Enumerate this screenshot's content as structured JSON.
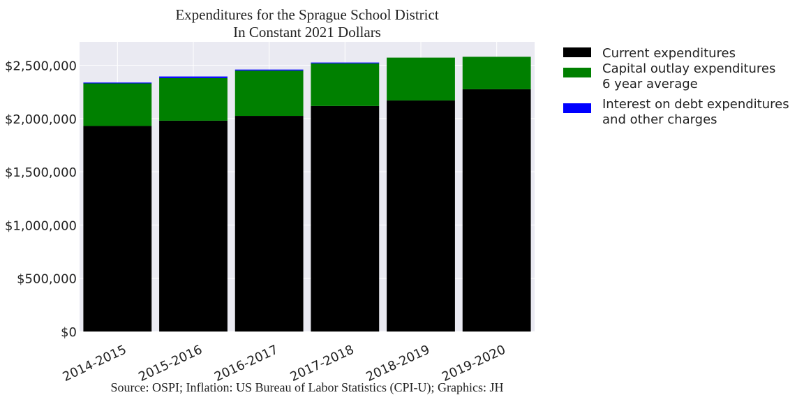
{
  "chart_data": {
    "type": "bar",
    "stacked": true,
    "title": "Expenditures for the Sprague School District",
    "subtitle": "In Constant 2021 Dollars",
    "footer": "Source: OSPI; Inflation: US Bureau of Labor Statistics (CPI-U); Graphics: JH",
    "categories": [
      "2014-2015",
      "2015-2016",
      "2016-2017",
      "2017-2018",
      "2018-2019",
      "2019-2020"
    ],
    "series": [
      {
        "name": "Current expenditures",
        "color": "#000000",
        "values": [
          1930000,
          1980000,
          2025000,
          2118000,
          2170000,
          2275000
        ]
      },
      {
        "name": "Capital outlay expenditures\n6 year average",
        "color": "#008000",
        "values": [
          400000,
          400000,
          425000,
          400000,
          402000,
          305000
        ]
      },
      {
        "name": "Interest on debt expenditures\nand other charges",
        "color": "#0000ff",
        "values": [
          8000,
          15000,
          10000,
          8000,
          0,
          0
        ]
      }
    ],
    "y_ticks": [
      0,
      500000,
      1000000,
      1500000,
      2000000,
      2500000
    ],
    "y_tick_labels": [
      "$0",
      "$500,000",
      "$1,000,000",
      "$1,500,000",
      "$2,000,000",
      "$2,500,000"
    ],
    "ylim": [
      0,
      2720000
    ],
    "grid": true,
    "legend_position": "outside-right",
    "xlabel": "",
    "ylabel": "",
    "plot_background": "#eaeaf2"
  }
}
